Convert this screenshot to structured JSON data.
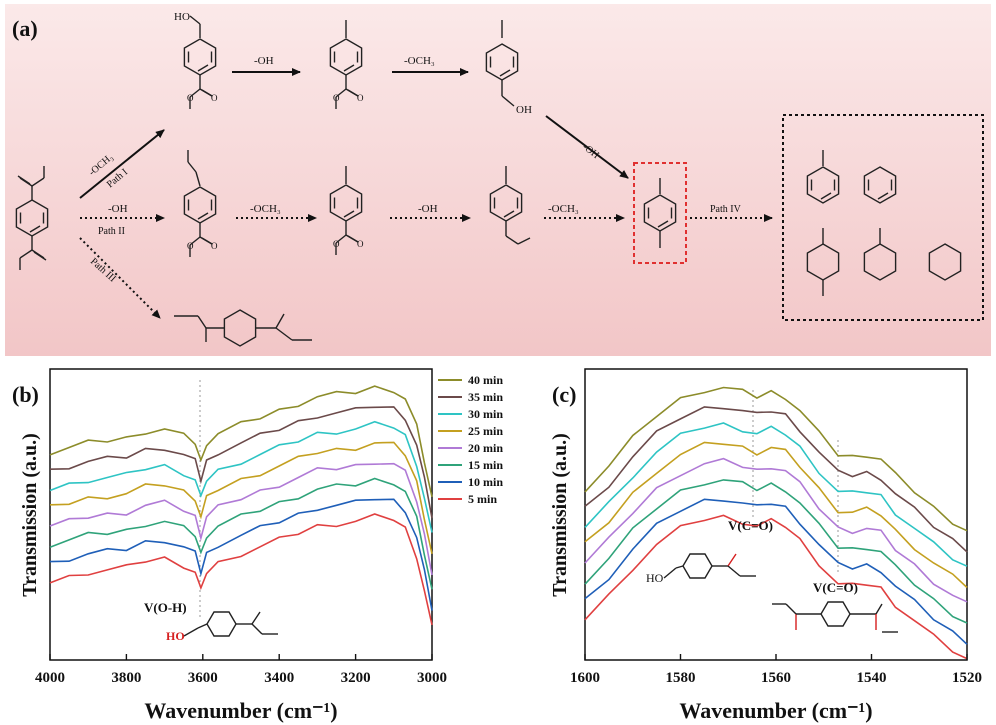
{
  "panel_a": {
    "label": "(a)",
    "steps": {
      "row1_oh": "-OH",
      "row1_och3": "-OCH₃",
      "path1_och3": "-OCH₃",
      "path1_name": "Path I",
      "path2_oh": "-OH",
      "path2_name": "Path II",
      "path3_name": "Path III",
      "row2_och3": "-OCH₃",
      "row2_oh": "-OH",
      "row2_och3_b": "-OCH₃",
      "diag_oh": "-OH",
      "path4_name": "Path IV"
    },
    "atoms": {
      "ho": "HO",
      "oh": "OH"
    },
    "colors": {
      "background_top": "#fbe8e8",
      "background_bottom": "#f3c9ca",
      "highlight_box": "#e03030"
    }
  },
  "panel_b": {
    "label": "(b)",
    "ylabel": "Transmission (a.u.)",
    "xlabel": "Wavenumber (cm⁻¹)",
    "annotation": "V(O-H)",
    "molecule_atoms": {
      "ho": "HO"
    }
  },
  "panel_c": {
    "label": "(c)",
    "ylabel": "Transmission (a.u.)",
    "xlabel": "Wavenumber (cm⁻¹)",
    "annotation_1": "V(C=O)",
    "annotation_2": "V(C=O)",
    "molecule_atoms": {
      "ho": "HO"
    }
  },
  "legend": [
    {
      "name": "40 min",
      "color": "#8c8c2a"
    },
    {
      "name": "35 min",
      "color": "#6b4a4a"
    },
    {
      "name": "30 min",
      "color": "#2ec4c4"
    },
    {
      "name": "25 min",
      "color": "#c4a020"
    },
    {
      "name": "20 min",
      "color": "#b07ad6"
    },
    {
      "name": "15 min",
      "color": "#2fa37a"
    },
    {
      "name": "10 min",
      "color": "#1f5fb8"
    },
    {
      "name": "5 min",
      "color": "#e04040"
    }
  ],
  "chart_data": [
    {
      "type": "line",
      "xlabel": "Wavenumber (cm⁻¹)",
      "ylabel": "Transmission (a.u.)",
      "xlim": [
        4000,
        3000
      ],
      "x_ticks": [
        "4000",
        "3800",
        "3600",
        "3400",
        "3200",
        "3000"
      ],
      "x": [
        4000,
        3950,
        3900,
        3850,
        3800,
        3750,
        3700,
        3650,
        3620,
        3605,
        3590,
        3560,
        3500,
        3450,
        3400,
        3350,
        3300,
        3250,
        3200,
        3150,
        3100,
        3070,
        3040,
        3020,
        3000
      ],
      "base": [
        0.34,
        0.36,
        0.38,
        0.39,
        0.4,
        0.43,
        0.44,
        0.41,
        0.38,
        0.3,
        0.38,
        0.42,
        0.46,
        0.49,
        0.52,
        0.55,
        0.58,
        0.59,
        0.6,
        0.62,
        0.61,
        0.57,
        0.45,
        0.3,
        0.14
      ],
      "series": [
        {
          "name": "40 min",
          "offset": 0.56
        },
        {
          "name": "35 min",
          "offset": 0.48
        },
        {
          "name": "30 min",
          "offset": 0.4
        },
        {
          "name": "25 min",
          "offset": 0.32
        },
        {
          "name": "20 min",
          "offset": 0.24
        },
        {
          "name": "15 min",
          "offset": 0.16
        },
        {
          "name": "10 min",
          "offset": 0.08
        },
        {
          "name": "5 min",
          "offset": 0.0
        }
      ]
    },
    {
      "type": "line",
      "xlabel": "Wavenumber (cm⁻¹)",
      "ylabel": "Transmission (a.u.)",
      "xlim": [
        1600,
        1520
      ],
      "x_ticks": [
        "1600",
        "1580",
        "1560",
        "1540",
        "1520"
      ],
      "x": [
        1600,
        1595,
        1590,
        1585,
        1580,
        1575,
        1571,
        1567,
        1564,
        1561,
        1558,
        1555,
        1551,
        1547,
        1544,
        1541,
        1538,
        1535,
        1531,
        1527,
        1523,
        1520
      ],
      "base": [
        0.18,
        0.28,
        0.4,
        0.5,
        0.57,
        0.61,
        0.62,
        0.6,
        0.58,
        0.6,
        0.58,
        0.52,
        0.42,
        0.33,
        0.32,
        0.33,
        0.31,
        0.24,
        0.17,
        0.1,
        0.04,
        0.0
      ],
      "series": [
        {
          "name": "40 min",
          "offset": 0.56
        },
        {
          "name": "35 min",
          "offset": 0.48
        },
        {
          "name": "30 min",
          "offset": 0.4
        },
        {
          "name": "25 min",
          "offset": 0.32
        },
        {
          "name": "20 min",
          "offset": 0.24
        },
        {
          "name": "15 min",
          "offset": 0.16
        },
        {
          "name": "10 min",
          "offset": 0.08
        },
        {
          "name": "5 min",
          "offset": 0.0
        }
      ]
    }
  ]
}
